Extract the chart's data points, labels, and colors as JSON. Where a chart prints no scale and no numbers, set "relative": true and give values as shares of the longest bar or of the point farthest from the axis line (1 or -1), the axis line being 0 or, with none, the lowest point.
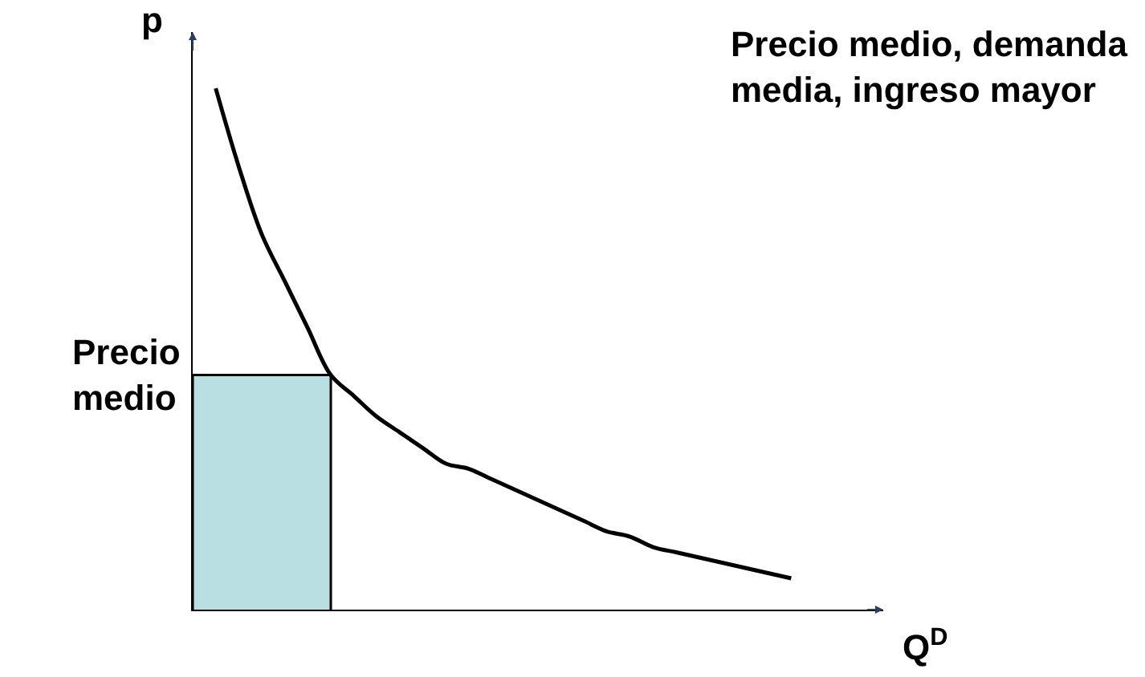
{
  "chart_data": {
    "type": "line",
    "relative": true,
    "title": "Precio medio, demanda\nmedia, ingreso mayor",
    "xlabel": "Q$^{D}$",
    "ylabel": "p",
    "categories": [
      null,
      null,
      null,
      null,
      null,
      null,
      null,
      null,
      null,
      null,
      null,
      null,
      null,
      null,
      null,
      null,
      null,
      null,
      null,
      null,
      null,
      null,
      null,
      null,
      null,
      null,
      null
    ],
    "series": [
      {
        "type": "area",
        "color": "#b9dfe2",
        "values": [
          0.45,
          0.45,
          0.45,
          0.45,
          0.45,
          0.45,
          0.45,
          null,
          null,
          null,
          null,
          null,
          null,
          null,
          null,
          null,
          null,
          null,
          null,
          null,
          null,
          null,
          null,
          null,
          null,
          null,
          null
        ]
      },
      {
        "color": "#000000",
        "values": [
          null,
          1.0,
          0.85,
          0.72,
          0.63,
          0.54,
          0.45,
          0.41,
          0.37,
          0.34,
          0.31,
          0.28,
          0.27,
          0.25,
          0.23,
          0.21,
          0.19,
          0.17,
          0.15,
          0.14,
          0.12,
          0.11,
          0.1,
          0.09,
          0.08,
          0.07,
          0.06
        ]
      }
    ],
    "annotations": [
      "Precio medio"
    ],
    "marker": "none"
  }
}
